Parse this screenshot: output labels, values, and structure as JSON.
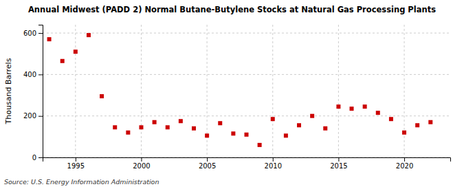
{
  "chart_data": {
    "type": "scatter",
    "title": "Annual Midwest (PADD 2) Normal Butane-Butylene Stocks at Natural Gas Processing Plants",
    "ylabel": "Thousand Barrels",
    "source": "Source: U.S. Energy Information Administration",
    "x": [
      1993,
      1994,
      1995,
      1996,
      1997,
      1998,
      1999,
      2000,
      2001,
      2002,
      2003,
      2004,
      2005,
      2006,
      2007,
      2008,
      2009,
      2010,
      2011,
      2012,
      2013,
      2014,
      2015,
      2016,
      2017,
      2018,
      2019,
      2020,
      2021,
      2022
    ],
    "values": [
      570,
      465,
      510,
      590,
      295,
      145,
      120,
      145,
      170,
      145,
      175,
      140,
      105,
      165,
      115,
      110,
      60,
      185,
      105,
      155,
      200,
      140,
      245,
      235,
      245,
      215,
      185,
      120,
      155,
      170
    ],
    "color": "#cc0000",
    "marker": "square",
    "xlim": [
      1992.5,
      2023.5
    ],
    "xticks": [
      1995,
      2000,
      2005,
      2010,
      2015,
      2020
    ],
    "ylim": [
      0,
      640
    ],
    "yticks": [
      0,
      200,
      400,
      600
    ],
    "grid": true
  }
}
